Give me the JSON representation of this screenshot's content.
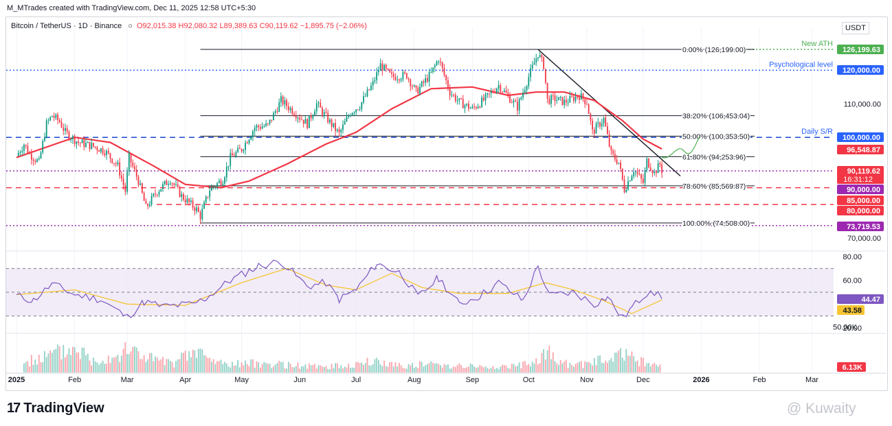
{
  "header": {
    "credit": "M_MTrades created with TradingView.com, Dec 11, 2025 12:58 UTC+5:30",
    "symbol": "Bitcoin / TetherUS · 1D · Binance",
    "ohlc": "O92,015.38 H92,080.32 L89,389.63 C90,119.62 −1,895.75 (−2.06%)",
    "currency": "USDT"
  },
  "brand": {
    "logo_text": "17",
    "name": "TradingView",
    "watermark": "@ Kuwaity"
  },
  "colors": {
    "candle_up": "#089981",
    "candle_down": "#f23645",
    "ema": "#f23645",
    "rsi_line": "#7e57c2",
    "rsi_ma": "#f7c533",
    "rsi_band": "#ede7f6",
    "ath_level": "#4caf50",
    "psych_level": "#2962ff",
    "support": "#f23645",
    "low_level": "#9c27b0"
  },
  "chart_data": {
    "type": "candlestick",
    "x_ticks": [
      "2025",
      "Feb",
      "Mar",
      "Apr",
      "May",
      "Jun",
      "Jul",
      "Aug",
      "Sep",
      "Oct",
      "Nov",
      "Dec",
      "2026",
      "Feb",
      "Mar"
    ],
    "price_axis_ticks": [
      "110,000.00",
      "70,000.00"
    ],
    "price_range": [
      66000,
      130000
    ],
    "fib_levels": [
      {
        "label": "0.00% (126,199.00)",
        "price": 126199
      },
      {
        "label": "38.20% (106,453.04)",
        "price": 106453.04
      },
      {
        "label": "50.00% (100,353.50)",
        "price": 100353.5
      },
      {
        "label": "61.80% (94,253.96)",
        "price": 94253.96
      },
      {
        "label": "78.60% (85,569.87)",
        "price": 85569.87
      },
      {
        "label": "100.00% (74,508.00)",
        "price": 74508
      }
    ],
    "annotations": [
      {
        "text": "New ATH",
        "price": 126199.63
      },
      {
        "text": "Psychological level",
        "price": 120000
      },
      {
        "text": "Daily S/R",
        "price": 100000
      }
    ],
    "price_badges": [
      {
        "text": "126,199.63",
        "price": 126199.63,
        "color": "#4caf50"
      },
      {
        "text": "120,000.00",
        "price": 120000,
        "color": "#2962ff"
      },
      {
        "text": "100,000.00",
        "price": 100000,
        "color": "#2962ff"
      },
      {
        "text": "96,548.87",
        "price": 96548.87,
        "color": "#f23645"
      },
      {
        "text": "90,119.62",
        "subtext": "16:31:12",
        "price": 90119.62,
        "color": "#f23645"
      },
      {
        "text": "90,000.00",
        "price": 90000,
        "color": "#9c27b0"
      },
      {
        "text": "85,000.00",
        "price": 85000,
        "color": "#f23645"
      },
      {
        "text": "80,000.00",
        "price": 80000,
        "color": "#f23645"
      },
      {
        "text": "73,719.53",
        "price": 73719.53,
        "color": "#9c27b0"
      }
    ],
    "price_series": [
      [
        "2025-01-01",
        94500
      ],
      [
        "2025-01-05",
        98000
      ],
      [
        "2025-01-08",
        95000
      ],
      [
        "2025-01-13",
        92500
      ],
      [
        "2025-01-17",
        104000
      ],
      [
        "2025-01-20",
        106500
      ],
      [
        "2025-01-24",
        104700
      ],
      [
        "2025-01-27",
        101500
      ],
      [
        "2025-02-03",
        98500
      ],
      [
        "2025-02-10",
        97500
      ],
      [
        "2025-02-17",
        96000
      ],
      [
        "2025-02-24",
        91500
      ],
      [
        "2025-02-28",
        84000
      ],
      [
        "2025-03-02",
        94000
      ],
      [
        "2025-03-07",
        87000
      ],
      [
        "2025-03-11",
        79000
      ],
      [
        "2025-03-17",
        84000
      ],
      [
        "2025-03-24",
        87500
      ],
      [
        "2025-03-30",
        82500
      ],
      [
        "2025-04-07",
        78500
      ],
      [
        "2025-04-09",
        76500
      ],
      [
        "2025-04-14",
        84500
      ],
      [
        "2025-04-21",
        87500
      ],
      [
        "2025-04-25",
        94000
      ],
      [
        "2025-05-01",
        96500
      ],
      [
        "2025-05-08",
        103000
      ],
      [
        "2025-05-15",
        103500
      ],
      [
        "2025-05-22",
        111000
      ],
      [
        "2025-05-28",
        108000
      ],
      [
        "2025-06-05",
        104000
      ],
      [
        "2025-06-10",
        110000
      ],
      [
        "2025-06-17",
        104500
      ],
      [
        "2025-06-22",
        101000
      ],
      [
        "2025-06-28",
        107500
      ],
      [
        "2025-07-03",
        109500
      ],
      [
        "2025-07-10",
        116000
      ],
      [
        "2025-07-14",
        121500
      ],
      [
        "2025-07-20",
        118000
      ],
      [
        "2025-07-28",
        118500
      ],
      [
        "2025-08-02",
        113500
      ],
      [
        "2025-08-10",
        119000
      ],
      [
        "2025-08-14",
        123500
      ],
      [
        "2025-08-20",
        113500
      ],
      [
        "2025-08-25",
        110500
      ],
      [
        "2025-09-01",
        108500
      ],
      [
        "2025-09-08",
        111500
      ],
      [
        "2025-09-15",
        115500
      ],
      [
        "2025-09-25",
        109000
      ],
      [
        "2025-10-01",
        118000
      ],
      [
        "2025-10-06",
        125000
      ],
      [
        "2025-10-09",
        121500
      ],
      [
        "2025-10-11",
        111000
      ],
      [
        "2025-10-15",
        111500
      ],
      [
        "2025-10-20",
        110500
      ],
      [
        "2025-10-28",
        112500
      ],
      [
        "2025-11-01",
        110500
      ],
      [
        "2025-11-04",
        101500
      ],
      [
        "2025-11-10",
        105500
      ],
      [
        "2025-11-14",
        95000
      ],
      [
        "2025-11-18",
        92500
      ],
      [
        "2025-11-21",
        84500
      ],
      [
        "2025-11-26",
        90500
      ],
      [
        "2025-12-01",
        86500
      ],
      [
        "2025-12-03",
        93000
      ],
      [
        "2025-12-07",
        89500
      ],
      [
        "2025-12-10",
        92000
      ],
      [
        "2025-12-11",
        90119.62
      ]
    ],
    "ema_series": [
      [
        "2025-01-01",
        94000
      ],
      [
        "2025-02-01",
        100000
      ],
      [
        "2025-02-20",
        98500
      ],
      [
        "2025-03-15",
        91500
      ],
      [
        "2025-04-01",
        86000
      ],
      [
        "2025-04-20",
        85000
      ],
      [
        "2025-05-05",
        87000
      ],
      [
        "2025-05-25",
        92000
      ],
      [
        "2025-06-15",
        98000
      ],
      [
        "2025-07-01",
        101500
      ],
      [
        "2025-07-20",
        108500
      ],
      [
        "2025-08-10",
        114500
      ],
      [
        "2025-09-01",
        115000
      ],
      [
        "2025-09-20",
        112500
      ],
      [
        "2025-10-05",
        113500
      ],
      [
        "2025-10-20",
        113500
      ],
      [
        "2025-11-05",
        111000
      ],
      [
        "2025-11-20",
        105000
      ],
      [
        "2025-12-01",
        99500
      ],
      [
        "2025-12-11",
        96548.87
      ]
    ],
    "rsi": {
      "axis_ticks": [
        "80.00",
        "60.00",
        "20.00"
      ],
      "range": [
        15,
        85
      ],
      "band": [
        30,
        70
      ],
      "mid": 50,
      "rsi_value": "44.47",
      "rsi_ma_value": "43.58",
      "rsi_series": [
        [
          "2025-01-01",
          47
        ],
        [
          "2025-01-10",
          43
        ],
        [
          "2025-01-20",
          57
        ],
        [
          "2025-02-01",
          48
        ],
        [
          "2025-02-15",
          44
        ],
        [
          "2025-03-01",
          29
        ],
        [
          "2025-03-10",
          42
        ],
        [
          "2025-03-20",
          38
        ],
        [
          "2025-04-05",
          40
        ],
        [
          "2025-04-12",
          45
        ],
        [
          "2025-04-25",
          60
        ],
        [
          "2025-05-10",
          72
        ],
        [
          "2025-05-22",
          76
        ],
        [
          "2025-06-05",
          55
        ],
        [
          "2025-06-15",
          58
        ],
        [
          "2025-06-22",
          44
        ],
        [
          "2025-07-01",
          52
        ],
        [
          "2025-07-12",
          74
        ],
        [
          "2025-07-25",
          66
        ],
        [
          "2025-08-03",
          46
        ],
        [
          "2025-08-14",
          62
        ],
        [
          "2025-08-25",
          40
        ],
        [
          "2025-09-05",
          47
        ],
        [
          "2025-09-15",
          58
        ],
        [
          "2025-09-28",
          43
        ],
        [
          "2025-10-06",
          72
        ],
        [
          "2025-10-12",
          47
        ],
        [
          "2025-10-25",
          50
        ],
        [
          "2025-11-05",
          40
        ],
        [
          "2025-11-12",
          46
        ],
        [
          "2025-11-20",
          28
        ],
        [
          "2025-11-25",
          37
        ],
        [
          "2025-12-05",
          53
        ],
        [
          "2025-12-11",
          44.47
        ]
      ],
      "rsi_ma_series": [
        [
          "2025-01-01",
          48
        ],
        [
          "2025-02-01",
          52
        ],
        [
          "2025-03-01",
          40
        ],
        [
          "2025-04-01",
          39
        ],
        [
          "2025-05-01",
          58
        ],
        [
          "2025-05-25",
          70
        ],
        [
          "2025-06-15",
          56
        ],
        [
          "2025-07-01",
          52
        ],
        [
          "2025-07-20",
          66
        ],
        [
          "2025-08-05",
          54
        ],
        [
          "2025-08-25",
          49
        ],
        [
          "2025-09-20",
          49
        ],
        [
          "2025-10-10",
          58
        ],
        [
          "2025-10-25",
          52
        ],
        [
          "2025-11-10",
          43
        ],
        [
          "2025-11-25",
          32
        ],
        [
          "2025-12-11",
          43.58
        ]
      ]
    },
    "volume": {
      "axis_label": "50.00K",
      "current_value": "6.13K",
      "max": 60,
      "series": [
        [
          "2025-01-05",
          12
        ],
        [
          "2025-01-15",
          18
        ],
        [
          "2025-01-20",
          22
        ],
        [
          "2025-02-03",
          30
        ],
        [
          "2025-02-10",
          14
        ],
        [
          "2025-02-25",
          22
        ],
        [
          "2025-03-03",
          28
        ],
        [
          "2025-03-10",
          20
        ],
        [
          "2025-03-25",
          10
        ],
        [
          "2025-04-07",
          26
        ],
        [
          "2025-04-15",
          14
        ],
        [
          "2025-04-25",
          10
        ],
        [
          "2025-05-10",
          11
        ],
        [
          "2025-05-25",
          9
        ],
        [
          "2025-06-10",
          7
        ],
        [
          "2025-06-25",
          8
        ],
        [
          "2025-07-10",
          13
        ],
        [
          "2025-07-25",
          9
        ],
        [
          "2025-08-10",
          10
        ],
        [
          "2025-08-25",
          9
        ],
        [
          "2025-09-10",
          6
        ],
        [
          "2025-09-25",
          8
        ],
        [
          "2025-10-06",
          12
        ],
        [
          "2025-10-10",
          30
        ],
        [
          "2025-10-15",
          14
        ],
        [
          "2025-10-25",
          8
        ],
        [
          "2025-11-05",
          14
        ],
        [
          "2025-11-15",
          16
        ],
        [
          "2025-11-21",
          25
        ],
        [
          "2025-12-01",
          13
        ],
        [
          "2025-12-11",
          6.13
        ]
      ]
    }
  }
}
